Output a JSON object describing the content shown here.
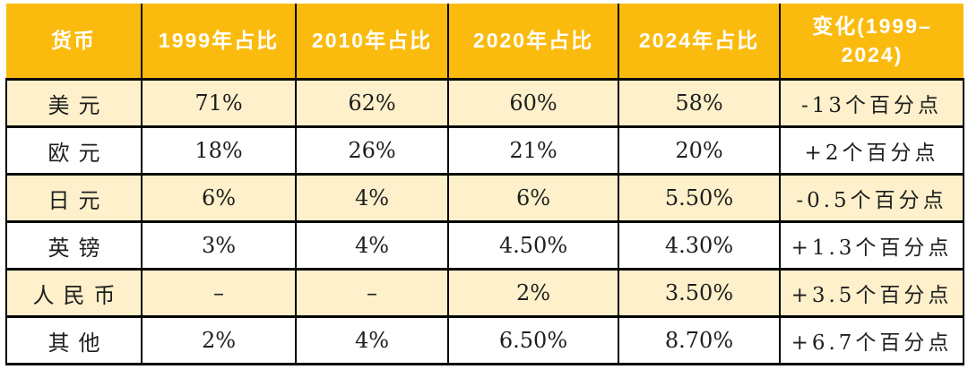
{
  "colors": {
    "header_bg": "#FBBB0E",
    "header_text": "#FFFFFF",
    "row_stripe_bg": "#FDF0CA",
    "row_bg": "#FFFFFF",
    "grid_border": "#000000",
    "body_text": "#1E1E1E"
  },
  "chart_data": {
    "type": "table",
    "title": "",
    "columns": [
      "货币",
      "1999年占比",
      "2010年占比",
      "2020年占比",
      "2024年占比",
      "变化(1999–2024)"
    ],
    "rows": [
      [
        "美元",
        "71%",
        "62%",
        "60%",
        "58%",
        "-13个百分点"
      ],
      [
        "欧元",
        "18%",
        "26%",
        "21%",
        "20%",
        "+2个百分点"
      ],
      [
        "日元",
        "6%",
        "4%",
        "6%",
        "5.50%",
        "-0.5个百分点"
      ],
      [
        "英镑",
        "3%",
        "4%",
        "4.50%",
        "4.30%",
        "+1.3个百分点"
      ],
      [
        "人民币",
        "–",
        "–",
        "2%",
        "3.50%",
        "+3.5个百分点"
      ],
      [
        "其他",
        "2%",
        "4%",
        "6.50%",
        "8.70%",
        "+6.7个百分点"
      ]
    ]
  }
}
